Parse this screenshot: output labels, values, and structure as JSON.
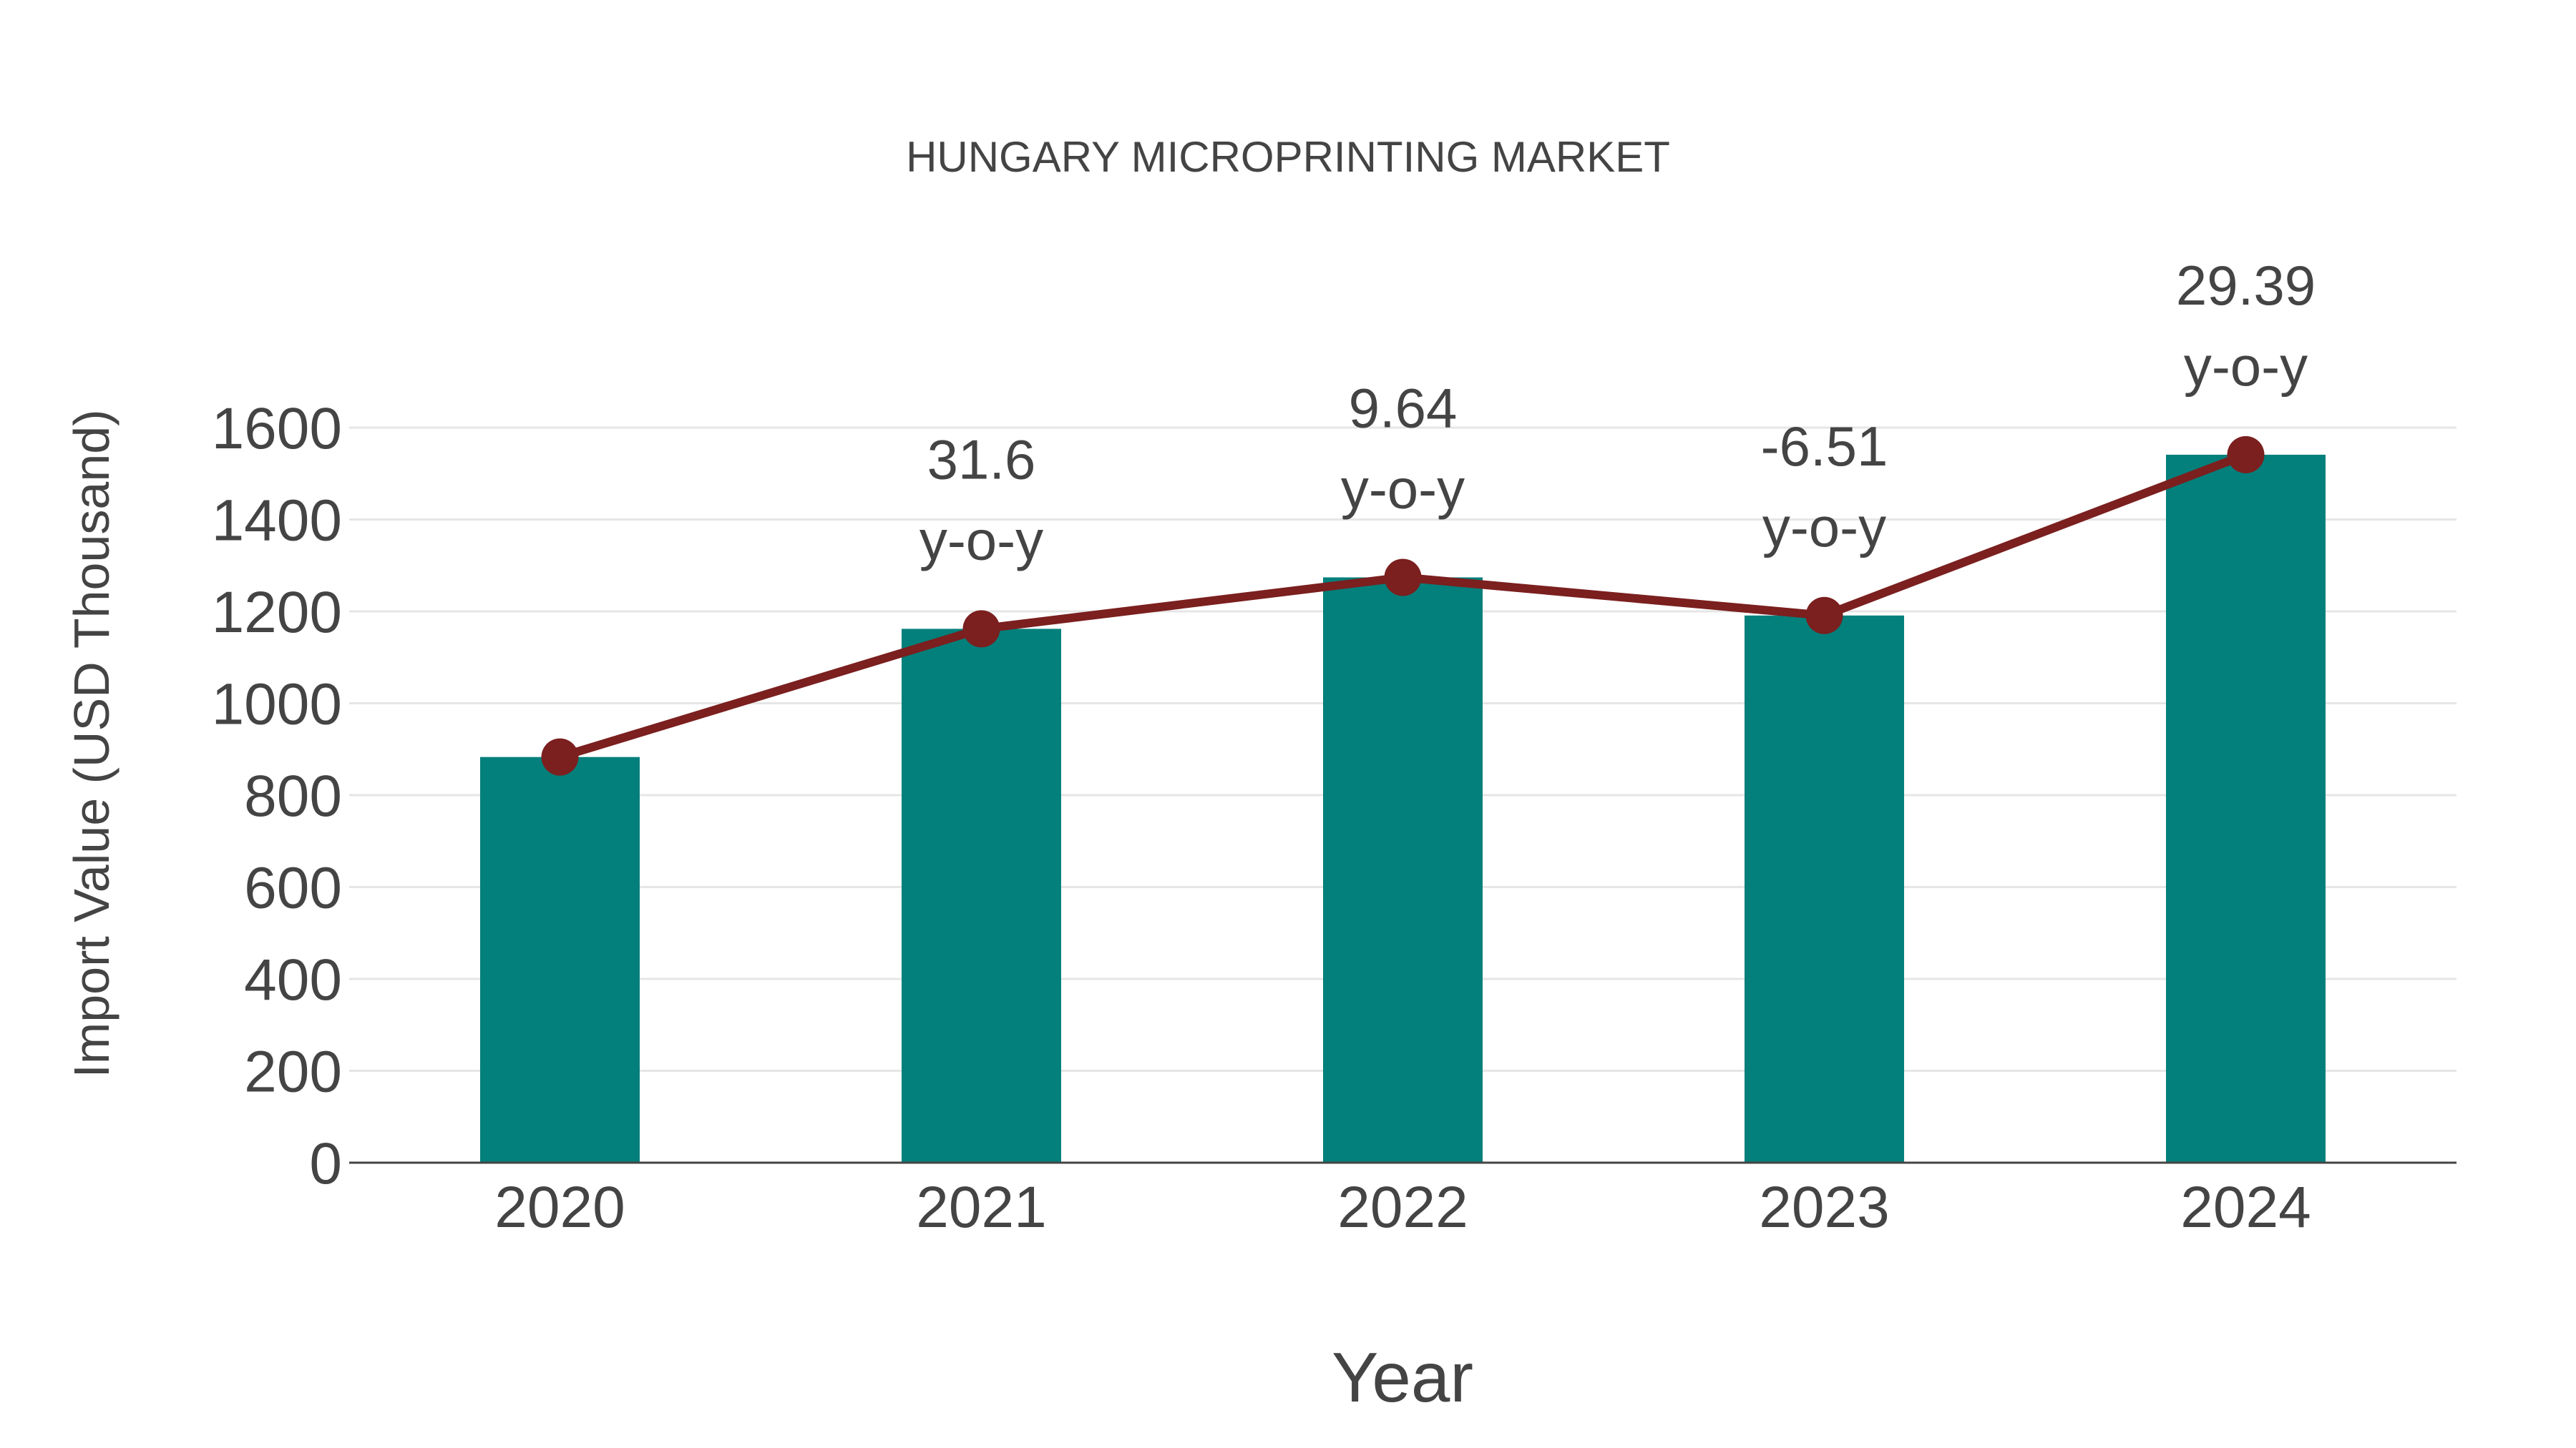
{
  "chart_data": {
    "type": "bar",
    "title": "HUNGARY MICROPRINTING MARKET",
    "xlabel": "Year",
    "ylabel": "Import Value (USD Thousand)",
    "categories": [
      "2020",
      "2021",
      "2022",
      "2023",
      "2024"
    ],
    "series": [
      {
        "name": "Import Value",
        "type": "bar",
        "color": "#03807b",
        "values": [
          883,
          1162,
          1274,
          1191,
          1541
        ]
      },
      {
        "name": "Trend",
        "type": "line",
        "color": "#7b1f1f",
        "values": [
          883,
          1162,
          1274,
          1191,
          1541
        ]
      }
    ],
    "annotations": [
      {
        "year": "2021",
        "value": "31.6",
        "suffix": "y-o-y"
      },
      {
        "year": "2022",
        "value": "9.64",
        "suffix": "y-o-y"
      },
      {
        "year": "2023",
        "value": "-6.51",
        "suffix": "y-o-y"
      },
      {
        "year": "2024",
        "value": "29.39",
        "suffix": "y-o-y"
      }
    ],
    "yticks": [
      "0",
      "200",
      "400",
      "600",
      "800",
      "1000",
      "1200",
      "1400",
      "1600"
    ],
    "ylim": [
      0,
      1600
    ],
    "grid": true,
    "legend": "none"
  }
}
